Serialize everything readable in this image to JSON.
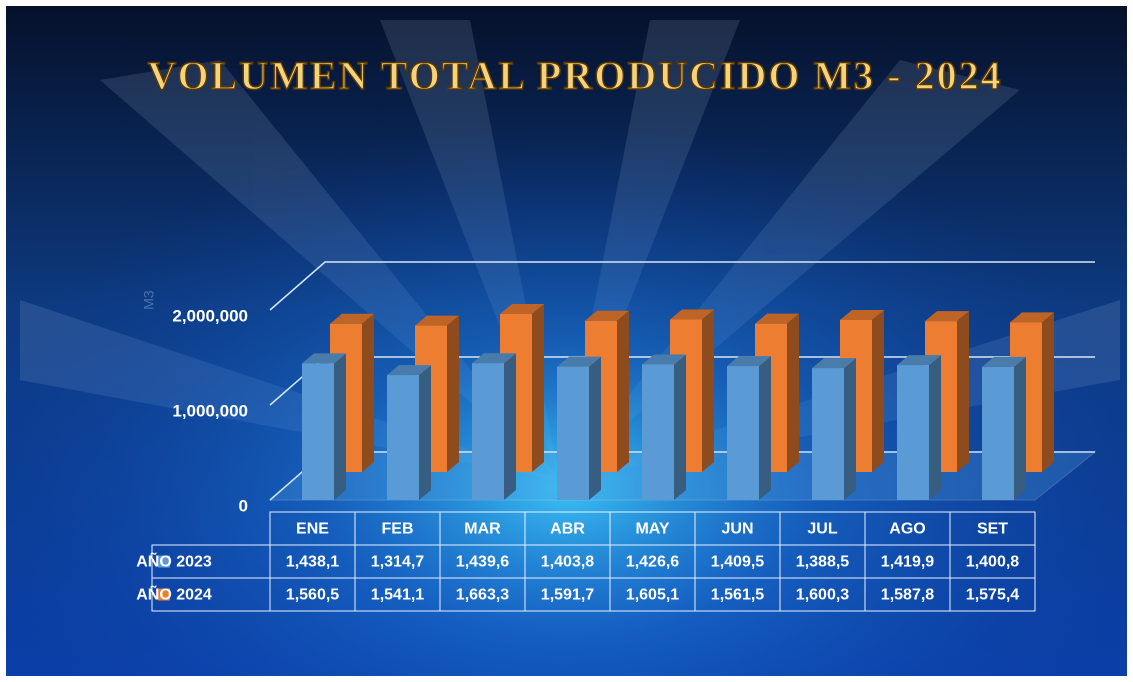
{
  "chart_data": {
    "type": "bar3d",
    "title": "VOLUMEN TOTAL PRODUCIDO M3 - 2024",
    "y_axis_label": "M3",
    "categories": [
      "ENE",
      "FEB",
      "MAR",
      "ABR",
      "MAY",
      "JUN",
      "JUL",
      "AGO",
      "SET"
    ],
    "series": [
      {
        "name": "AÑO 2023",
        "color": "#5b9bd5",
        "values": [
          1438100,
          1314700,
          1439600,
          1403800,
          1426600,
          1409500,
          1388500,
          1419900,
          1400800
        ],
        "value_labels": [
          "1,438,1",
          "1,314,7",
          "1,439,6",
          "1,403,8",
          "1,426,6",
          "1,409,5",
          "1,388,5",
          "1,419,9",
          "1,400,8"
        ]
      },
      {
        "name": "AÑO 2024",
        "color": "#ed7d31",
        "values": [
          1560500,
          1541100,
          1663300,
          1591700,
          1605100,
          1561500,
          1600300,
          1587800,
          1575400
        ],
        "value_labels": [
          "1,560,5",
          "1,541,1",
          "1,663,3",
          "1,591,7",
          "1,605,1",
          "1,561,5",
          "1,600,3",
          "1,587,8",
          "1,575,4"
        ]
      }
    ],
    "ylim": [
      0,
      2000000
    ],
    "yticks": [
      0,
      {
        "value": 1000000,
        "label": "1,000,000"
      },
      {
        "value": 2000000,
        "label": "2,000,000"
      }
    ],
    "grid": true
  }
}
